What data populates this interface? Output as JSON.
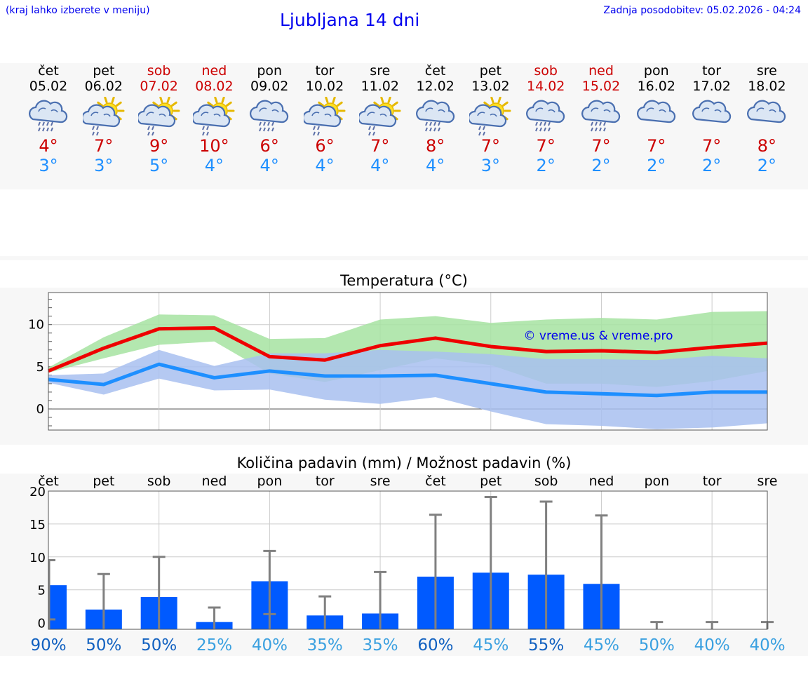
{
  "header": {
    "menu_hint": "(kraj lahko izberete v meniju)",
    "title": "Ljubljana 14 dni",
    "updated": "Zadnja posodobitev: 05.02.2026 - 04:24"
  },
  "days": [
    {
      "name": "čet",
      "date": "05.02",
      "weekend": false,
      "icon": "cloud-rain-icon",
      "tmax": "4°",
      "tmin": "3°"
    },
    {
      "name": "pet",
      "date": "06.02",
      "weekend": false,
      "icon": "sun-cloud-rain-icon",
      "tmax": "7°",
      "tmin": "3°"
    },
    {
      "name": "sob",
      "date": "07.02",
      "weekend": true,
      "icon": "sun-cloud-rain-icon",
      "tmax": "9°",
      "tmin": "5°"
    },
    {
      "name": "ned",
      "date": "08.02",
      "weekend": true,
      "icon": "sun-cloud-rain-icon",
      "tmax": "10°",
      "tmin": "4°"
    },
    {
      "name": "pon",
      "date": "09.02",
      "weekend": false,
      "icon": "cloud-rain-icon",
      "tmax": "6°",
      "tmin": "4°"
    },
    {
      "name": "tor",
      "date": "10.02",
      "weekend": false,
      "icon": "sun-cloud-rain-icon",
      "tmax": "6°",
      "tmin": "4°"
    },
    {
      "name": "sre",
      "date": "11.02",
      "weekend": false,
      "icon": "sun-cloud-rain-icon",
      "tmax": "7°",
      "tmin": "4°"
    },
    {
      "name": "čet",
      "date": "12.02",
      "weekend": false,
      "icon": "cloud-rain-icon",
      "tmax": "8°",
      "tmin": "4°"
    },
    {
      "name": "pet",
      "date": "13.02",
      "weekend": false,
      "icon": "sun-cloud-rain-icon",
      "tmax": "7°",
      "tmin": "3°"
    },
    {
      "name": "sob",
      "date": "14.02",
      "weekend": true,
      "icon": "cloud-rain-icon",
      "tmax": "7°",
      "tmin": "2°"
    },
    {
      "name": "ned",
      "date": "15.02",
      "weekend": true,
      "icon": "cloud-rain-icon",
      "tmax": "7°",
      "tmin": "2°"
    },
    {
      "name": "pon",
      "date": "16.02",
      "weekend": false,
      "icon": "cloud-icon",
      "tmax": "7°",
      "tmin": "2°"
    },
    {
      "name": "tor",
      "date": "17.02",
      "weekend": false,
      "icon": "cloud-icon",
      "tmax": "7°",
      "tmin": "2°"
    },
    {
      "name": "sre",
      "date": "18.02",
      "weekend": false,
      "icon": "cloud-icon",
      "tmax": "8°",
      "tmin": "2°"
    }
  ],
  "colors": {
    "max_line": "#ee0000",
    "min_line": "#1e8fff",
    "max_band": "#a6e3a1",
    "min_band": "#a8c0f0",
    "bar": "#005aff",
    "whisker": "#808080",
    "weekend": "#cc0000",
    "link": "#0000ee"
  },
  "chart_data": [
    {
      "type": "line",
      "title": "Temperatura (°C)",
      "watermark": "© vreme.us & vreme.pro",
      "x": [
        0,
        1,
        2,
        3,
        4,
        5,
        6,
        7,
        8,
        9,
        10,
        11,
        12,
        13
      ],
      "ylim": [
        -2.5,
        13.8
      ],
      "yticks": [
        0,
        5,
        10
      ],
      "series": [
        {
          "name": "max",
          "values": [
            4.5,
            7.2,
            9.5,
            9.6,
            6.2,
            5.8,
            7.5,
            8.4,
            7.4,
            6.8,
            6.9,
            6.7,
            7.3,
            7.8
          ]
        },
        {
          "name": "min",
          "values": [
            3.5,
            2.9,
            5.3,
            3.7,
            4.5,
            3.9,
            3.9,
            4.0,
            3.0,
            2.0,
            1.8,
            1.6,
            2.0,
            2.0
          ]
        }
      ],
      "bands": [
        {
          "name": "max_range",
          "lower": [
            4.3,
            6.0,
            7.6,
            8.0,
            4.2,
            3.2,
            4.6,
            6.0,
            5.2,
            3.0,
            3.0,
            2.6,
            3.3,
            4.5
          ],
          "upper": [
            4.9,
            8.5,
            11.2,
            11.1,
            8.3,
            8.4,
            10.6,
            11.0,
            10.2,
            10.6,
            10.8,
            10.6,
            11.5,
            11.6
          ]
        },
        {
          "name": "min_range",
          "lower": [
            3.1,
            1.7,
            3.6,
            2.2,
            2.3,
            1.1,
            0.6,
            1.4,
            -0.3,
            -1.8,
            -2.0,
            -2.4,
            -2.2,
            -1.7
          ],
          "upper": [
            4.0,
            4.2,
            7.0,
            5.1,
            6.6,
            6.6,
            7.0,
            6.8,
            6.5,
            5.9,
            5.9,
            5.8,
            6.3,
            6.0
          ]
        }
      ]
    },
    {
      "type": "bar",
      "title": "Količina padavin (mm) / Možnost padavin (%)",
      "categories": [
        "čet",
        "pet",
        "sob",
        "ned",
        "pon",
        "tor",
        "sre",
        "čet",
        "pet",
        "sob",
        "ned",
        "pon",
        "tor",
        "sre"
      ],
      "ylim": [
        -1,
        20
      ],
      "yticks": [
        0,
        5,
        10,
        15,
        20
      ],
      "values": [
        5.7,
        2.0,
        3.9,
        0.1,
        6.3,
        1.1,
        1.4,
        7.0,
        7.6,
        7.3,
        5.9,
        0,
        0,
        0
      ],
      "whisker_high": [
        9.5,
        7.4,
        10.0,
        2.3,
        10.9,
        4.0,
        7.7,
        16.4,
        19.1,
        18.4,
        16.3,
        0.1,
        0.1,
        0.1
      ],
      "whisker_low": [
        0.5,
        0,
        0,
        0,
        1.3,
        0,
        0,
        0,
        0,
        0,
        0,
        0,
        0,
        0
      ],
      "probability": [
        "90%",
        "50%",
        "50%",
        "25%",
        "40%",
        "35%",
        "35%",
        "60%",
        "45%",
        "55%",
        "45%",
        "50%",
        "40%",
        "40%"
      ],
      "prob_colors": [
        "#1060c0",
        "#1060c0",
        "#1060c0",
        "#3aa0e0",
        "#3aa0e0",
        "#3aa0e0",
        "#3aa0e0",
        "#1060c0",
        "#3aa0e0",
        "#1060c0",
        "#3aa0e0",
        "#3aa0e0",
        "#3aa0e0",
        "#3aa0e0"
      ]
    }
  ]
}
